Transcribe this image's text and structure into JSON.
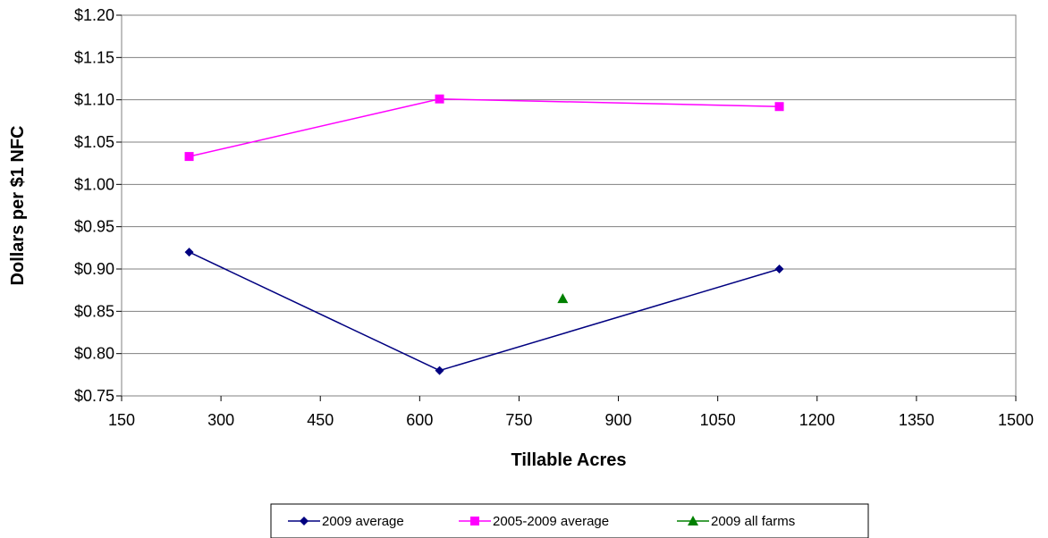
{
  "chart_data": {
    "type": "line",
    "title": "",
    "xlabel": "Tillable Acres",
    "ylabel": "Dollars per $1 NFC",
    "xlim": [
      150,
      1500
    ],
    "ylim": [
      0.75,
      1.2
    ],
    "x_ticks": [
      150,
      300,
      450,
      600,
      750,
      900,
      1050,
      1200,
      1350,
      1500
    ],
    "x_tick_labels": [
      "150",
      "300",
      "450",
      "600",
      "750",
      "900",
      "1050",
      "1200",
      "1350",
      "1500"
    ],
    "y_ticks": [
      0.75,
      0.8,
      0.85,
      0.9,
      0.95,
      1.0,
      1.05,
      1.1,
      1.15,
      1.2
    ],
    "y_tick_labels": [
      "$0.75",
      "$0.80",
      "$0.85",
      "$0.90",
      "$0.95",
      "$1.00",
      "$1.05",
      "$1.10",
      "$1.15",
      "$1.20"
    ],
    "grid": "horizontal",
    "legend_position": "bottom",
    "series": [
      {
        "name": "2009 average",
        "color": "#000080",
        "marker": "diamond",
        "x": [
          252,
          630,
          1143
        ],
        "y": [
          0.92,
          0.78,
          0.9
        ]
      },
      {
        "name": "2005-2009 average",
        "color": "#FF00FF",
        "marker": "square",
        "x": [
          252,
          630,
          1143
        ],
        "y": [
          1.033,
          1.101,
          1.092
        ]
      },
      {
        "name": "2009 all farms",
        "color": "#008000",
        "marker": "triangle",
        "x": [
          816
        ],
        "y": [
          0.865
        ]
      }
    ]
  }
}
